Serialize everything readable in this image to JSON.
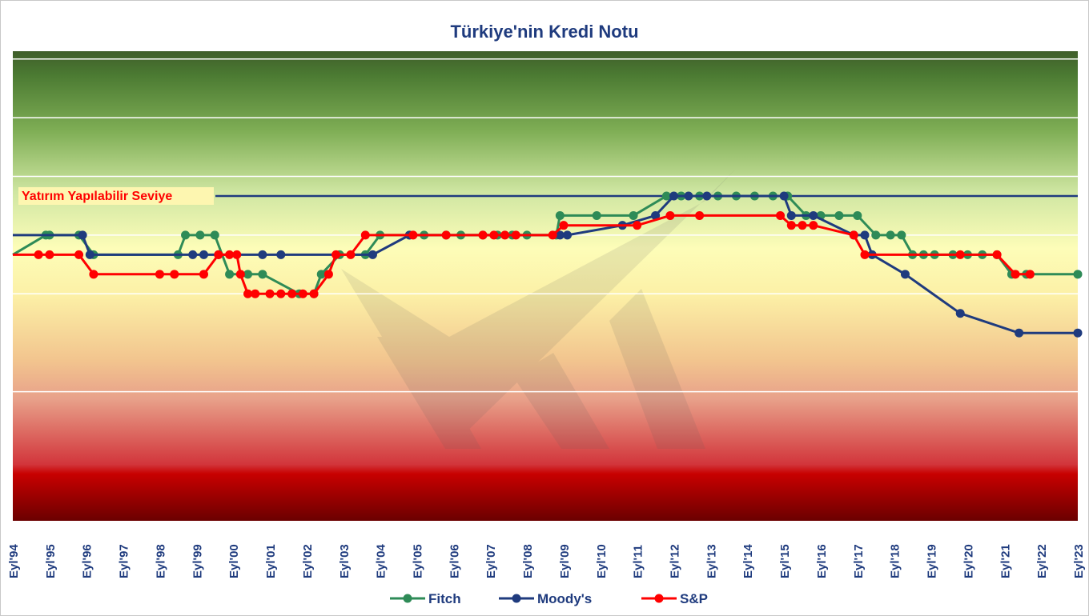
{
  "chart_data": {
    "type": "line",
    "title": "Türkiye'nin Kredi Notu",
    "xlabel": "",
    "ylabel": "",
    "x_ticks": [
      "Eyl'94",
      "Eyl'95",
      "Eyl'96",
      "Eyl'97",
      "Eyl'98",
      "Eyl'99",
      "Eyl'00",
      "Eyl'01",
      "Eyl'02",
      "Eyl'03",
      "Eyl'04",
      "Eyl'05",
      "Eyl'06",
      "Eyl'07",
      "Eyl'08",
      "Eyl'09",
      "Eyl'10",
      "Eyl'11",
      "Eyl'12",
      "Eyl'13",
      "Eyl'14",
      "Eyl'15",
      "Eyl'16",
      "Eyl'17",
      "Eyl'18",
      "Eyl'19",
      "Eyl'20",
      "Eyl'21",
      "Eyl'22",
      "Eyl'23"
    ],
    "xlim": [
      1994.7,
      2023.7
    ],
    "y_scale_note": "notch levels, higher = better rating",
    "ylim": [
      -6.6,
      17.4
    ],
    "band_lines": [
      0,
      5,
      8,
      11,
      14,
      17
    ],
    "investment_grade": {
      "label": "Yatırım Yapılabilir Seviye",
      "level": 10
    },
    "legend_position": "bottom",
    "series": [
      {
        "name": "Fitch",
        "color": "#2e8b57",
        "points": [
          [
            1994.7,
            7
          ],
          [
            1995.6,
            8
          ],
          [
            1995.7,
            8
          ],
          [
            1996.5,
            8
          ],
          [
            1996.9,
            7
          ],
          [
            1999.2,
            7
          ],
          [
            1999.4,
            8
          ],
          [
            1999.8,
            8
          ],
          [
            2000.2,
            8
          ],
          [
            2000.6,
            6
          ],
          [
            2001.1,
            6
          ],
          [
            2001.5,
            6
          ],
          [
            2002.5,
            5
          ],
          [
            2002.9,
            5
          ],
          [
            2003.1,
            6
          ],
          [
            2003.6,
            7
          ],
          [
            2004.3,
            7
          ],
          [
            2004.7,
            8
          ],
          [
            2005.5,
            8
          ],
          [
            2005.9,
            8
          ],
          [
            2006.5,
            8
          ],
          [
            2006.9,
            8
          ],
          [
            2007.5,
            8
          ],
          [
            2007.9,
            8
          ],
          [
            2008.3,
            8
          ],
          [
            2008.7,
            8
          ],
          [
            2009.5,
            8
          ],
          [
            2009.6,
            9
          ],
          [
            2010.6,
            9
          ],
          [
            2011.6,
            9
          ],
          [
            2012.5,
            10
          ],
          [
            2012.9,
            10
          ],
          [
            2013.4,
            10
          ],
          [
            2013.9,
            10
          ],
          [
            2014.4,
            10
          ],
          [
            2014.9,
            10
          ],
          [
            2015.4,
            10
          ],
          [
            2015.8,
            10
          ],
          [
            2016.3,
            9
          ],
          [
            2016.7,
            9
          ],
          [
            2017.2,
            9
          ],
          [
            2017.7,
            9
          ],
          [
            2018.2,
            8
          ],
          [
            2018.6,
            8
          ],
          [
            2018.9,
            8
          ],
          [
            2019.2,
            7
          ],
          [
            2019.5,
            7
          ],
          [
            2019.8,
            7
          ],
          [
            2020.3,
            7
          ],
          [
            2020.7,
            7
          ],
          [
            2021.1,
            7
          ],
          [
            2021.5,
            7
          ],
          [
            2021.9,
            6
          ],
          [
            2022.3,
            6
          ],
          [
            2023.7,
            6
          ]
        ]
      },
      {
        "name": "Moody's",
        "color": "#1f3b7e",
        "points": [
          [
            1994.7,
            8
          ],
          [
            1996.6,
            8
          ],
          [
            1996.8,
            7
          ],
          [
            1999.6,
            7
          ],
          [
            1999.9,
            7
          ],
          [
            2000.3,
            7
          ],
          [
            2001.5,
            7
          ],
          [
            2002.0,
            7
          ],
          [
            2004.5,
            7
          ],
          [
            2005.5,
            8
          ],
          [
            2009.6,
            8
          ],
          [
            2009.8,
            8
          ],
          [
            2011.3,
            8.5
          ],
          [
            2012.2,
            9
          ],
          [
            2012.7,
            10
          ],
          [
            2013.1,
            10
          ],
          [
            2013.6,
            10
          ],
          [
            2015.7,
            10
          ],
          [
            2015.9,
            9
          ],
          [
            2016.5,
            9
          ],
          [
            2017.6,
            8
          ],
          [
            2017.9,
            8
          ],
          [
            2018.1,
            7
          ],
          [
            2019.0,
            6
          ],
          [
            2020.5,
            4
          ],
          [
            2022.1,
            3
          ],
          [
            2023.7,
            3
          ]
        ]
      },
      {
        "name": "S&P",
        "color": "#ff0000",
        "points": [
          [
            1994.7,
            7
          ],
          [
            1995.4,
            7
          ],
          [
            1995.7,
            7
          ],
          [
            1996.5,
            7
          ],
          [
            1996.9,
            6
          ],
          [
            1998.7,
            6
          ],
          [
            1999.1,
            6
          ],
          [
            1999.9,
            6
          ],
          [
            2000.3,
            7
          ],
          [
            2000.6,
            7
          ],
          [
            2000.8,
            7
          ],
          [
            2000.9,
            6
          ],
          [
            2001.1,
            5
          ],
          [
            2001.3,
            5
          ],
          [
            2001.7,
            5
          ],
          [
            2002.0,
            5
          ],
          [
            2002.3,
            5
          ],
          [
            2002.6,
            5
          ],
          [
            2002.9,
            5
          ],
          [
            2003.3,
            6
          ],
          [
            2003.5,
            7
          ],
          [
            2003.9,
            7
          ],
          [
            2004.3,
            8
          ],
          [
            2005.6,
            8
          ],
          [
            2006.5,
            8
          ],
          [
            2007.5,
            8
          ],
          [
            2007.8,
            8
          ],
          [
            2008.1,
            8
          ],
          [
            2008.4,
            8
          ],
          [
            2009.4,
            8
          ],
          [
            2009.7,
            8.5
          ],
          [
            2011.7,
            8.5
          ],
          [
            2012.6,
            9
          ],
          [
            2013.4,
            9
          ],
          [
            2015.6,
            9
          ],
          [
            2015.9,
            8.5
          ],
          [
            2016.2,
            8.5
          ],
          [
            2016.5,
            8.5
          ],
          [
            2017.6,
            8
          ],
          [
            2017.9,
            7
          ],
          [
            2020.5,
            7
          ],
          [
            2021.5,
            7
          ],
          [
            2022.0,
            6
          ],
          [
            2022.4,
            6
          ]
        ]
      }
    ]
  }
}
